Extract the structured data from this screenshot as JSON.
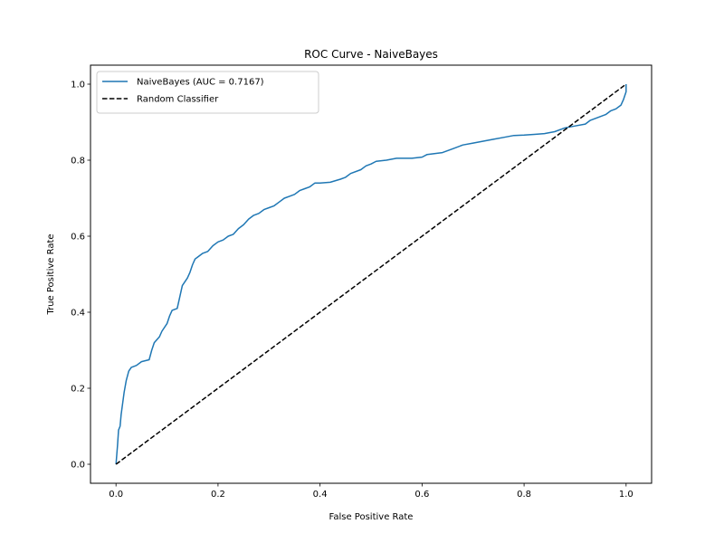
{
  "chart_data": {
    "type": "line",
    "title": "ROC Curve - NaiveBayes",
    "xlabel": "False Positive Rate",
    "ylabel": "True Positive Rate",
    "xlim": [
      -0.05,
      1.05
    ],
    "ylim": [
      -0.05,
      1.05
    ],
    "xticks": [
      0.0,
      0.2,
      0.4,
      0.6,
      0.8,
      1.0
    ],
    "yticks": [
      0.0,
      0.2,
      0.4,
      0.6,
      0.8,
      1.0
    ],
    "xtick_labels": [
      "0.0",
      "0.2",
      "0.4",
      "0.6",
      "0.8",
      "1.0"
    ],
    "ytick_labels": [
      "0.0",
      "0.2",
      "0.4",
      "0.6",
      "0.8",
      "1.0"
    ],
    "grid": false,
    "legend_position": "top-left",
    "series": [
      {
        "name": "NaiveBayes (AUC = 0.7167)",
        "color": "#1f77b4",
        "style": "solid",
        "x": [
          0.0,
          0.003,
          0.005,
          0.008,
          0.01,
          0.013,
          0.016,
          0.02,
          0.025,
          0.03,
          0.04,
          0.05,
          0.065,
          0.07,
          0.075,
          0.085,
          0.09,
          0.1,
          0.105,
          0.11,
          0.12,
          0.125,
          0.13,
          0.14,
          0.145,
          0.15,
          0.155,
          0.16,
          0.17,
          0.18,
          0.19,
          0.2,
          0.21,
          0.22,
          0.23,
          0.24,
          0.245,
          0.25,
          0.26,
          0.27,
          0.28,
          0.29,
          0.3,
          0.31,
          0.32,
          0.33,
          0.34,
          0.35,
          0.36,
          0.37,
          0.38,
          0.39,
          0.4,
          0.42,
          0.44,
          0.45,
          0.46,
          0.48,
          0.49,
          0.5,
          0.51,
          0.53,
          0.55,
          0.58,
          0.6,
          0.61,
          0.64,
          0.66,
          0.68,
          0.7,
          0.72,
          0.74,
          0.76,
          0.78,
          0.8,
          0.82,
          0.84,
          0.86,
          0.88,
          0.9,
          0.92,
          0.925,
          0.93,
          0.94,
          0.95,
          0.96,
          0.97,
          0.98,
          0.99,
          0.995,
          1.0,
          1.0
        ],
        "y": [
          0.0,
          0.05,
          0.09,
          0.1,
          0.13,
          0.16,
          0.19,
          0.22,
          0.245,
          0.255,
          0.26,
          0.27,
          0.275,
          0.3,
          0.32,
          0.335,
          0.35,
          0.37,
          0.39,
          0.405,
          0.41,
          0.44,
          0.47,
          0.49,
          0.505,
          0.525,
          0.54,
          0.545,
          0.555,
          0.56,
          0.575,
          0.585,
          0.59,
          0.6,
          0.605,
          0.62,
          0.625,
          0.63,
          0.645,
          0.655,
          0.66,
          0.67,
          0.675,
          0.68,
          0.69,
          0.7,
          0.705,
          0.71,
          0.72,
          0.725,
          0.73,
          0.74,
          0.74,
          0.742,
          0.75,
          0.755,
          0.765,
          0.775,
          0.785,
          0.79,
          0.797,
          0.8,
          0.805,
          0.805,
          0.808,
          0.815,
          0.82,
          0.83,
          0.84,
          0.845,
          0.85,
          0.855,
          0.86,
          0.865,
          0.866,
          0.868,
          0.87,
          0.875,
          0.885,
          0.89,
          0.895,
          0.9,
          0.905,
          0.91,
          0.915,
          0.92,
          0.93,
          0.935,
          0.945,
          0.96,
          0.98,
          1.0
        ]
      },
      {
        "name": "Random Classifier",
        "color": "#000000",
        "style": "dashed",
        "x": [
          0.0,
          1.0
        ],
        "y": [
          0.0,
          1.0
        ]
      }
    ]
  }
}
